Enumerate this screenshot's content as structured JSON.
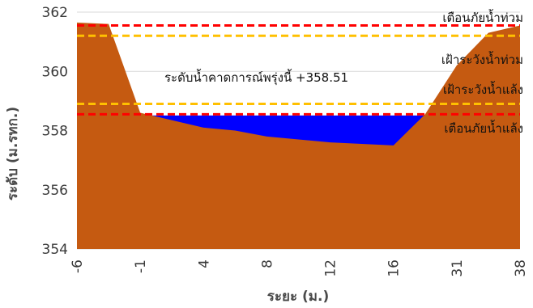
{
  "chart_data": {
    "type": "area",
    "xlabel": "ระยะ (ม.)",
    "ylabel": "ระดับ (ม.รทก.)",
    "ylim": [
      354,
      362
    ],
    "yticks": [
      354,
      356,
      358,
      360,
      362
    ],
    "categories": [
      "-6",
      "-1",
      "4",
      "8",
      "12",
      "16",
      "31",
      "38"
    ],
    "grid": "horizontal",
    "series": [
      {
        "type": "ground",
        "color": "#c55a11",
        "points": [
          [
            0,
            361.65
          ],
          [
            0.5,
            361.6
          ],
          [
            1.0,
            358.6
          ],
          [
            2.0,
            358.1
          ],
          [
            2.5,
            358.0
          ],
          [
            3.0,
            357.8
          ],
          [
            4.0,
            357.6
          ],
          [
            5.0,
            357.5
          ],
          [
            5.5,
            358.55
          ],
          [
            6.0,
            360.2
          ],
          [
            6.5,
            361.3
          ],
          [
            7.0,
            361.55
          ]
        ]
      },
      {
        "type": "water",
        "color": "#0000ff",
        "level": 358.51
      }
    ],
    "thresholds": [
      {
        "label": "เตือนภัยน้ำท่วม",
        "value": 361.55,
        "color": "#ff0000"
      },
      {
        "label": "เฝ้าระวังน้ำท่วม",
        "value": 361.2,
        "color": "#ffc000"
      },
      {
        "label": "เฝ้าระวังน้ำแล้ง",
        "value": 358.9,
        "color": "#ffc000"
      },
      {
        "label": "เตือนภัยน้ำแล้ง",
        "value": 358.55,
        "color": "#ff0000"
      }
    ],
    "annotation": "ระดับน้ำคาดการณ์พรุ่งนี้ +358.51"
  }
}
